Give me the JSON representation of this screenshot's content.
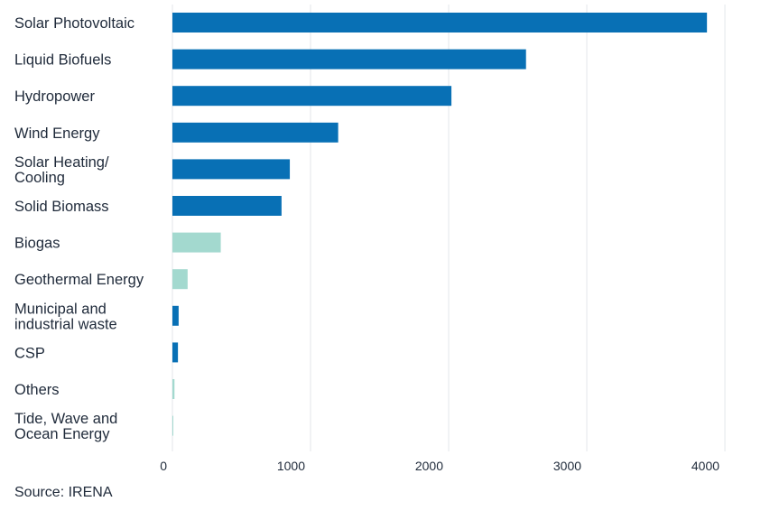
{
  "chart_data": {
    "type": "bar",
    "orientation": "horizontal",
    "categories": [
      "Solar Photovoltaic",
      "Liquid Biofuels",
      "Hydropower",
      "Wind Energy",
      "Solar Heating/\nCooling",
      "Solid Biomass",
      "Biogas",
      "Geothermal Energy",
      "Municipal and\nindustrial waste",
      "CSP",
      "Others",
      "Tide, Wave and\nOcean Energy"
    ],
    "values": [
      3870,
      2560,
      2020,
      1200,
      850,
      790,
      350,
      110,
      45,
      40,
      15,
      3
    ],
    "colors": [
      "#0870b5",
      "#0870b5",
      "#0870b5",
      "#0870b5",
      "#0870b5",
      "#0870b5",
      "#a3d9cf",
      "#a3d9cf",
      "#0870b5",
      "#0870b5",
      "#a3d9cf",
      "#a3d9cf"
    ],
    "xlim": [
      0,
      4150
    ],
    "xticks": [
      0,
      1000,
      2000,
      3000,
      4000
    ],
    "grid": true,
    "legend": "none",
    "grid_color": "#e3e6ea",
    "text_color": "#1f2a3a"
  },
  "source": "Source: IRENA"
}
